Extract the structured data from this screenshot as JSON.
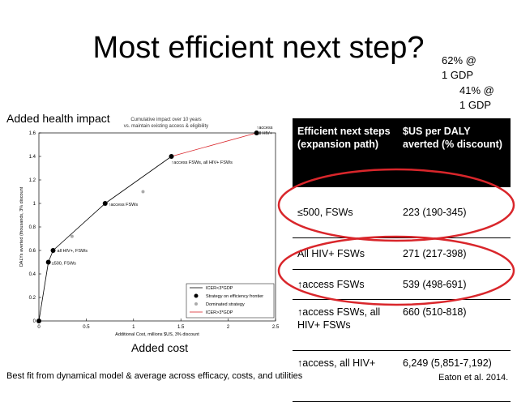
{
  "slide": {
    "title": "Most efficient next step?",
    "note_62": [
      "62% @",
      "1 GDP"
    ],
    "note_41": [
      "41% @",
      "1 GDP"
    ],
    "y_heading": "Added health impact",
    "x_heading": "Added cost",
    "chart_caption": [
      "Cumulative impact over 10 years",
      "vs. maintain existing access & eligibility"
    ],
    "footnote": "Best fit from dynamical model & average across efficacy, costs, and utilities",
    "citation": "Eaton et al. 2014."
  },
  "table": {
    "headers": [
      "Efficient next steps (expansion path)",
      "$US per DALY averted (% discount)"
    ],
    "rows": [
      [
        "≤500, FSWs",
        "223 (190-345)"
      ],
      [
        "All HIV+ FSWs",
        "271 (217-398)"
      ],
      [
        "↑access FSWs",
        "539 (498-691)"
      ],
      [
        "↑access FSWs, all HIV+ FSWs",
        "660 (510-818)"
      ],
      [
        "↑access, all HIV+",
        "6,249 (5,851-7,192)"
      ]
    ]
  },
  "highlight_color": "#d9262b",
  "chart_data": {
    "type": "line",
    "xlabel": "Additional Cost, millions $US, 3% discount",
    "ylabel": "DALYs averted (thousands, 3% discount",
    "xlim": [
      0,
      2.5
    ],
    "ylim": [
      0,
      1.6
    ],
    "xticks": [
      "0",
      "0.5",
      "1",
      "1.5",
      "2",
      "2.5"
    ],
    "yticks": [
      "0",
      "0.2",
      "0.4",
      "0.6",
      "0.8",
      "1",
      "1.2",
      "1.4",
      "1.6"
    ],
    "frontier": [
      {
        "x": 0,
        "y": 0,
        "label": ""
      },
      {
        "x": 0.1,
        "y": 0.5,
        "label": "≤500, FSWs"
      },
      {
        "x": 0.15,
        "y": 0.6,
        "label": "all HIV+, FSWs"
      },
      {
        "x": 0.7,
        "y": 1.0,
        "label": "↑access FSWs"
      },
      {
        "x": 1.4,
        "y": 1.4,
        "label": "↑access FSWs, all HIV+ FSWs"
      },
      {
        "x": 2.3,
        "y": 1.6,
        "label": "↑access all HIV+"
      }
    ],
    "dominated": [
      {
        "x": 0.35,
        "y": 0.72
      },
      {
        "x": 1.1,
        "y": 1.1
      }
    ],
    "icer3_segment": [
      1.4,
      2.3
    ],
    "legend": {
      "placement": "bottom-right",
      "items": [
        "ICER<3*GDP",
        "Strategy on efficiency frontier",
        "Dominated strategy",
        "ICER>3*GDP"
      ]
    },
    "colors": {
      "frontier": "#000000",
      "dominated": "#aaaaaa",
      "icer_high": "#d9262b"
    }
  }
}
